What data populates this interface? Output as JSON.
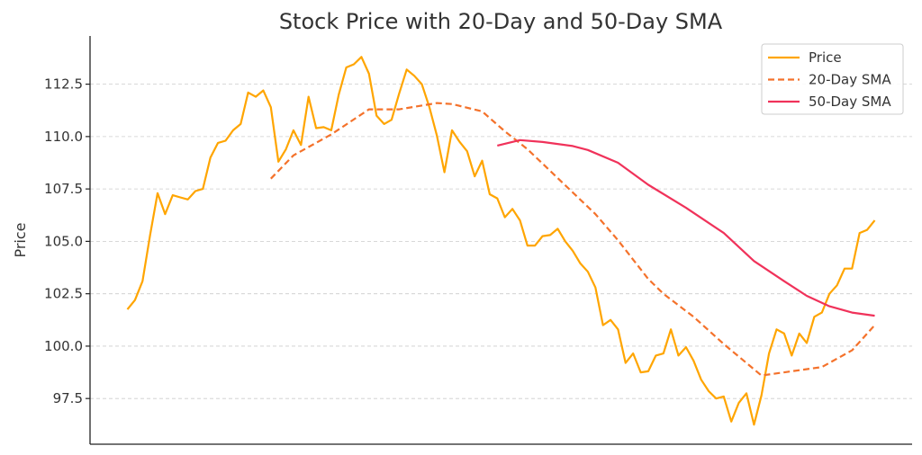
{
  "chart_data": {
    "type": "line",
    "title": "Stock Price with 20-Day and 50-Day SMA",
    "xlabel": "",
    "ylabel": "Price",
    "xlim": [
      -4.95,
      103.95
    ],
    "ylim": [
      95.32,
      114.8
    ],
    "yticks": [
      97.5,
      100.0,
      102.5,
      105.0,
      107.5,
      110.0,
      112.5
    ],
    "ytick_labels": [
      "97.5",
      "100.0",
      "102.5",
      "105.0",
      "107.5",
      "110.0",
      "112.5"
    ],
    "grid": "horizontal-dashed",
    "legend_position": "top-right",
    "series": [
      {
        "name": "Price",
        "color": "#FFA500",
        "style": "solid",
        "x_start": 0,
        "values": [
          101.75,
          102.2,
          103.1,
          105.3,
          107.3,
          106.3,
          107.2,
          107.1,
          107.0,
          107.4,
          107.5,
          109.0,
          109.7,
          109.8,
          110.3,
          110.6,
          112.1,
          111.9,
          112.2,
          111.4,
          108.8,
          109.4,
          110.3,
          109.6,
          111.9,
          110.4,
          110.45,
          110.3,
          112.0,
          113.3,
          113.45,
          113.8,
          113.0,
          111.0,
          110.6,
          110.8,
          112.05,
          113.2,
          112.9,
          112.5,
          111.4,
          110.05,
          108.3,
          110.3,
          109.75,
          109.3,
          108.1,
          108.85,
          107.25,
          107.05,
          106.15,
          106.55,
          106.0,
          104.8,
          104.8,
          105.25,
          105.3,
          105.6,
          105.0,
          104.55,
          103.95,
          103.55,
          102.8,
          101.0,
          101.25,
          100.8,
          99.2,
          99.65,
          98.75,
          98.8,
          99.55,
          99.65,
          100.8,
          99.55,
          99.95,
          99.3,
          98.4,
          97.85,
          97.5,
          97.6,
          96.4,
          97.3,
          97.75,
          96.25,
          97.65,
          99.65,
          100.8,
          100.6,
          99.55,
          100.6,
          100.15,
          101.4,
          101.6,
          102.5,
          102.9,
          103.7,
          103.7,
          105.4,
          105.55,
          106.0
        ]
      },
      {
        "name": "20-Day SMA",
        "color": "#F4722B",
        "style": "dashed",
        "x": [
          19,
          22,
          24,
          27,
          32,
          36,
          41,
          43,
          47,
          50,
          53,
          62,
          65,
          69,
          71,
          75,
          79,
          84,
          92,
          96,
          99
        ],
        "values": [
          107.99,
          109.1,
          109.5,
          110.1,
          111.3,
          111.3,
          111.6,
          111.55,
          111.2,
          110.25,
          109.4,
          106.3,
          105.05,
          103.2,
          102.5,
          101.4,
          100.1,
          98.6,
          99.0,
          99.8,
          101.0
        ]
      },
      {
        "name": "50-Day SMA",
        "color": "#F0325A",
        "style": "solid",
        "x": [
          49,
          52,
          55,
          59,
          61,
          65,
          69,
          74,
          79,
          83,
          87,
          90,
          93,
          96,
          99
        ],
        "values": [
          109.57,
          109.83,
          109.74,
          109.55,
          109.36,
          108.75,
          107.7,
          106.6,
          105.4,
          104.06,
          103.1,
          102.4,
          101.9,
          101.6,
          101.45
        ]
      }
    ]
  }
}
